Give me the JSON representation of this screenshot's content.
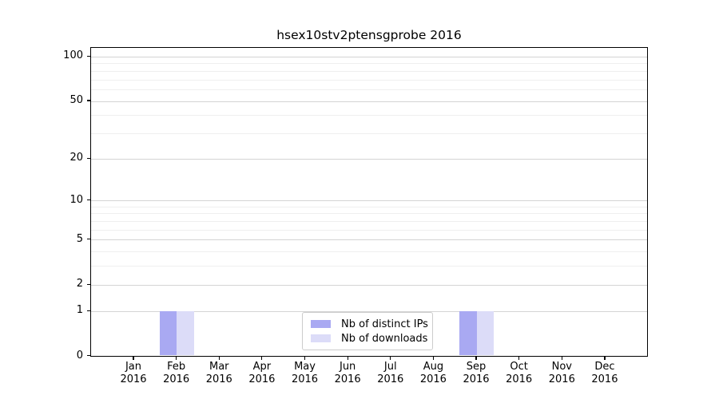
{
  "figure": {
    "title": "hsex10stv2ptensgprobe 2016"
  },
  "chart_data": {
    "type": "bar",
    "title": "hsex10stv2ptensgprobe 2016",
    "categories": [
      "Jan 2016",
      "Feb 2016",
      "Mar 2016",
      "Apr 2016",
      "May 2016",
      "Jun 2016",
      "Jul 2016",
      "Aug 2016",
      "Sep 2016",
      "Oct 2016",
      "Nov 2016",
      "Dec 2016"
    ],
    "x_tick_top": [
      "Jan",
      "Feb",
      "Mar",
      "Apr",
      "May",
      "Jun",
      "Jul",
      "Aug",
      "Sep",
      "Oct",
      "Nov",
      "Dec"
    ],
    "x_tick_bottom": "2016",
    "series": [
      {
        "name": "Nb of distinct IPs",
        "color": "#a9a9f2",
        "values": [
          0,
          1,
          0,
          0,
          0,
          0,
          0,
          0,
          1,
          0,
          0,
          0
        ]
      },
      {
        "name": "Nb of downloads",
        "color": "#dcdcf8",
        "values": [
          0,
          1,
          0,
          0,
          0,
          0,
          0,
          0,
          1,
          0,
          0,
          0
        ]
      }
    ],
    "y_scale": "log1p",
    "xlabel": "",
    "ylabel": "",
    "y_major_ticks": [
      0,
      1,
      2,
      5,
      10,
      20,
      50,
      100
    ],
    "y_minor_ticks": [
      3,
      4,
      6,
      7,
      8,
      9,
      30,
      40,
      60,
      70,
      80,
      90
    ],
    "ylim": [
      0,
      113
    ],
    "grid": true,
    "legend_position": "lower center"
  },
  "colors": {
    "background": "#ffffff",
    "axis": "#000000",
    "grid_major": "#d4d4d4",
    "grid_minor": "#efefef",
    "bar_distinct_ips": "#a9a9f2",
    "bar_downloads": "#dcdcf8",
    "legend_border": "#cccccc",
    "text": "#000000"
  }
}
